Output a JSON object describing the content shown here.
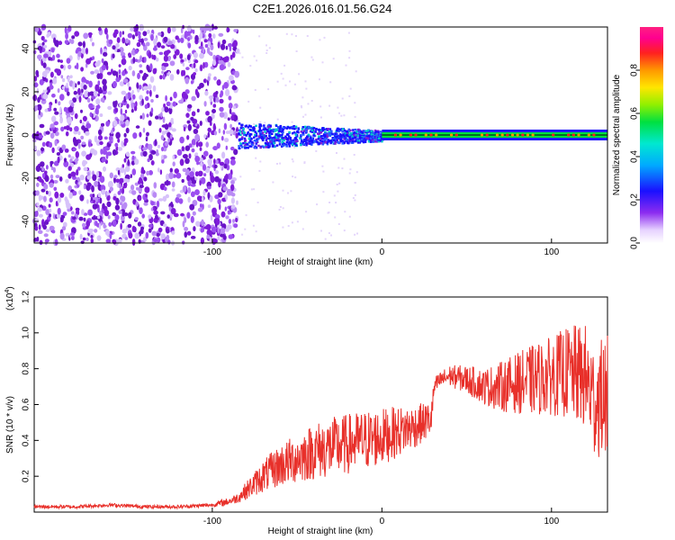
{
  "figure_title": "C2E1.2026.016.01.56.G24",
  "colorbar": {
    "label": "Normalized spectral amplitude",
    "ticks": [
      "0.0",
      "0.2",
      "0.4",
      "0.6",
      "0.8"
    ],
    "range": [
      0,
      1
    ]
  },
  "colors": {
    "snr_line": "#e8302a",
    "dot_primary": "#7f1dd9",
    "band_center": "#00c8c8"
  },
  "chart_data": [
    {
      "type": "heatmap",
      "title": "",
      "xlabel": "Height of straight line (km)",
      "ylabel": "Frequency (Hz)",
      "xlim": [
        -205,
        133
      ],
      "ylim": [
        -50,
        50
      ],
      "xticks": [
        -100,
        0,
        100
      ],
      "xtick_labels": [
        "-100",
        "0",
        "100"
      ],
      "yticks": [
        -40,
        -20,
        0,
        20,
        40
      ],
      "ytick_labels": [
        "-40",
        "-20",
        "0",
        "20",
        "40"
      ],
      "regions": [
        {
          "name": "noise",
          "x_range": [
            -205,
            -85
          ],
          "freq_range": [
            -50,
            50
          ],
          "amplitude": 0.15
        },
        {
          "name": "transition",
          "x_range": [
            -85,
            0
          ],
          "freq_range": [
            -8,
            8
          ],
          "amplitude": 0.35
        },
        {
          "name": "tone",
          "x_range": [
            0,
            133
          ],
          "freq": 0,
          "amplitude": 0.95
        }
      ]
    },
    {
      "type": "line",
      "title": "",
      "xlabel": "Height of straight line (km)",
      "ylabel": "SNR (10 * v/v)",
      "scale_label": "(x10",
      "scale_exponent": "4",
      "xlim": [
        -205,
        133
      ],
      "ylim": [
        0,
        1.2
      ],
      "xticks": [
        -100,
        0,
        100
      ],
      "xtick_labels": [
        "-100",
        "0",
        "100"
      ],
      "yticks": [
        0.2,
        0.4,
        0.6,
        0.8,
        1.0,
        1.2
      ],
      "ytick_labels": [
        "0.2",
        "0.4",
        "0.6",
        "0.8",
        "1.0",
        "1.2"
      ],
      "series": [
        {
          "name": "SNR",
          "x": [
            -205,
            -180,
            -160,
            -140,
            -120,
            -100,
            -95,
            -90,
            -85,
            -80,
            -70,
            -60,
            -50,
            -40,
            -30,
            -20,
            -10,
            0,
            10,
            20,
            29,
            31,
            35,
            40,
            50,
            60,
            70,
            80,
            90,
            100,
            110,
            120,
            125,
            133
          ],
          "y": [
            0.03,
            0.03,
            0.04,
            0.03,
            0.03,
            0.04,
            0.05,
            0.06,
            0.08,
            0.12,
            0.2,
            0.26,
            0.3,
            0.34,
            0.36,
            0.38,
            0.4,
            0.42,
            0.45,
            0.48,
            0.52,
            0.7,
            0.74,
            0.76,
            0.74,
            0.7,
            0.7,
            0.72,
            0.74,
            0.76,
            0.78,
            0.75,
            0.62,
            0.65
          ],
          "spread": [
            0.01,
            0.01,
            0.01,
            0.01,
            0.01,
            0.01,
            0.02,
            0.02,
            0.03,
            0.05,
            0.09,
            0.12,
            0.14,
            0.16,
            0.17,
            0.17,
            0.17,
            0.16,
            0.14,
            0.12,
            0.1,
            0.05,
            0.05,
            0.06,
            0.08,
            0.1,
            0.14,
            0.17,
            0.2,
            0.22,
            0.26,
            0.3,
            0.32,
            0.34
          ]
        }
      ]
    }
  ]
}
